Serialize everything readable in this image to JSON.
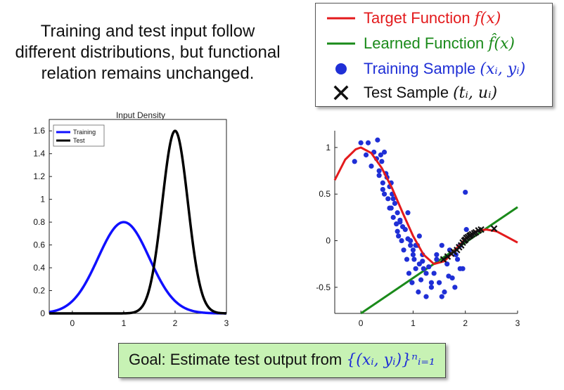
{
  "intro": {
    "line1": "Training and test input follow",
    "line2": "different distributions, but functional",
    "line3": "relation remains unchanged."
  },
  "legend": {
    "target": {
      "label": "Target Function",
      "math": "f(x)",
      "color": "#e31a1c"
    },
    "learned": {
      "label": "Learned Function",
      "math": "f̂(x)",
      "color": "#1a8a1a"
    },
    "training": {
      "label": "Training Sample",
      "math": "(xᵢ, yᵢ)",
      "color": "#1f2fd6"
    },
    "test": {
      "label": "Test Sample",
      "math": "(tᵢ, uᵢ)",
      "color": "#111111"
    }
  },
  "chart_data": [
    {
      "type": "line",
      "title": "Input Density",
      "xlim": [
        -0.45,
        3
      ],
      "ylim": [
        0,
        1.7
      ],
      "x_ticks": [
        "0",
        "1",
        "2",
        "3"
      ],
      "y_ticks": [
        "0",
        "0.2",
        "0.4",
        "0.6",
        "0.8",
        "1",
        "1.2",
        "1.4",
        "1.6"
      ],
      "legend_position": "top-left",
      "series": [
        {
          "name": "Training",
          "color": "#1010ff",
          "mean": 1.0,
          "sd": 0.5,
          "peak": 0.8
        },
        {
          "name": "Test",
          "color": "#000000",
          "mean": 2.0,
          "sd": 0.25,
          "peak": 1.6
        }
      ]
    },
    {
      "type": "scatter",
      "xlim": [
        -0.5,
        3
      ],
      "ylim": [
        -0.78,
        1.18
      ],
      "x_ticks": [
        "0",
        "1",
        "2",
        "3"
      ],
      "y_ticks": [
        "-0.5",
        "0",
        "0.5",
        "1"
      ],
      "target_curve": {
        "color": "#e31a1c",
        "x": [
          -0.5,
          -0.3,
          -0.1,
          0.0,
          0.2,
          0.4,
          0.6,
          0.8,
          1.0,
          1.2,
          1.4,
          1.6,
          1.8,
          2.0,
          2.2,
          2.4,
          2.6,
          2.8,
          3.0
        ],
        "y": [
          0.65,
          0.87,
          0.98,
          1.0,
          0.94,
          0.78,
          0.56,
          0.3,
          0.05,
          -0.15,
          -0.25,
          -0.22,
          -0.1,
          0.02,
          0.1,
          0.12,
          0.1,
          0.04,
          -0.02
        ]
      },
      "learned_line": {
        "color": "#1a8a1a",
        "x": [
          0.0,
          3.0
        ],
        "y": [
          -0.78,
          0.36
        ]
      },
      "training": {
        "color": "#1f2fd6",
        "x": [
          -0.12,
          0.0,
          0.1,
          0.14,
          0.2,
          0.25,
          0.3,
          0.32,
          0.35,
          0.38,
          0.4,
          0.42,
          0.45,
          0.48,
          0.5,
          0.52,
          0.55,
          0.58,
          0.6,
          0.62,
          0.65,
          0.68,
          0.7,
          0.72,
          0.75,
          0.78,
          0.8,
          0.82,
          0.85,
          0.88,
          0.9,
          0.92,
          0.95,
          0.98,
          1.0,
          1.02,
          1.05,
          1.08,
          1.1,
          1.12,
          1.15,
          1.18,
          1.2,
          1.25,
          1.3,
          1.35,
          1.4,
          1.45,
          1.5,
          1.55,
          1.6,
          1.65,
          1.7,
          1.75,
          1.8,
          1.85,
          1.9,
          1.95,
          2.0,
          0.35,
          0.42,
          0.55,
          0.62,
          0.7,
          0.9,
          1.0,
          1.12,
          1.25,
          1.35,
          1.45,
          1.55,
          1.68,
          1.82,
          1.9,
          2.02,
          0.45,
          0.58,
          0.75,
          0.95,
          1.05,
          1.18
        ],
        "y": [
          0.85,
          1.05,
          0.92,
          1.05,
          0.8,
          0.95,
          0.88,
          1.08,
          0.7,
          0.92,
          0.85,
          0.62,
          0.5,
          0.72,
          0.68,
          0.45,
          0.58,
          0.35,
          0.5,
          0.25,
          0.4,
          0.18,
          0.3,
          0.05,
          0.22,
          0.0,
          0.15,
          -0.1,
          0.12,
          -0.2,
          0.02,
          -0.35,
          -0.05,
          -0.45,
          -0.1,
          -0.2,
          -0.3,
          -0.05,
          -0.55,
          -0.25,
          -0.42,
          -0.15,
          -0.3,
          -0.6,
          -0.28,
          -0.5,
          -0.35,
          -0.15,
          -0.45,
          -0.05,
          -0.55,
          -0.25,
          -0.1,
          -0.4,
          -0.5,
          -0.2,
          -0.05,
          -0.3,
          0.52,
          0.75,
          0.55,
          0.35,
          0.45,
          0.1,
          0.3,
          -0.15,
          0.05,
          -0.35,
          -0.45,
          -0.2,
          -0.6,
          -0.38,
          -0.15,
          -0.3,
          0.12,
          0.95,
          0.62,
          0.2,
          0.0,
          -0.05,
          -0.22
        ]
      },
      "test": {
        "color": "#111111",
        "x": [
          1.58,
          1.66,
          1.73,
          1.78,
          1.84,
          1.88,
          1.92,
          1.95,
          1.98,
          2.0,
          2.02,
          2.05,
          2.08,
          2.1,
          2.13,
          2.17,
          2.2,
          2.25,
          2.3,
          2.55
        ],
        "y": [
          -0.2,
          -0.17,
          -0.14,
          -0.12,
          -0.1,
          -0.07,
          -0.05,
          -0.02,
          0.0,
          0.01,
          0.03,
          0.04,
          0.05,
          0.06,
          0.07,
          0.08,
          0.09,
          0.11,
          0.12,
          0.13
        ]
      }
    }
  ],
  "goal": {
    "text": "Goal: Estimate test output from",
    "math": "{(xᵢ, yᵢ)}ⁿᵢ₌₁"
  }
}
